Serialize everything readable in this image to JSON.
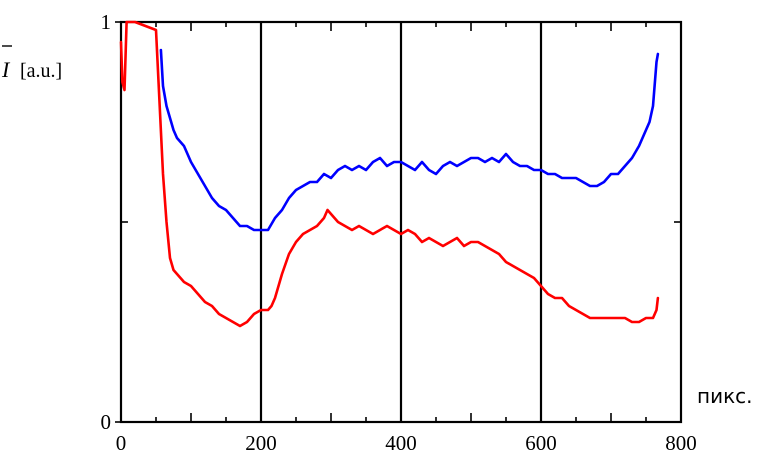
{
  "chart_data": {
    "type": "line",
    "ylabel_symbol": "I",
    "ylabel_unit": "[a.u.]",
    "xlabel": "пикс.",
    "xlim": [
      0,
      800
    ],
    "ylim": [
      0,
      1
    ],
    "x_ticks": [
      "0",
      "200",
      "400",
      "600",
      "800"
    ],
    "y_ticks": [
      "0",
      "1"
    ],
    "grid": "vertical at 200, 400, 600",
    "series": [
      {
        "color": "#0000ff",
        "points": [
          [
            57,
            0.93
          ],
          [
            60,
            0.84
          ],
          [
            65,
            0.79
          ],
          [
            70,
            0.76
          ],
          [
            75,
            0.73
          ],
          [
            80,
            0.71
          ],
          [
            85,
            0.7
          ],
          [
            90,
            0.69
          ],
          [
            95,
            0.67
          ],
          [
            100,
            0.65
          ],
          [
            110,
            0.62
          ],
          [
            120,
            0.59
          ],
          [
            130,
            0.56
          ],
          [
            140,
            0.54
          ],
          [
            150,
            0.53
          ],
          [
            160,
            0.51
          ],
          [
            170,
            0.49
          ],
          [
            180,
            0.49
          ],
          [
            190,
            0.48
          ],
          [
            200,
            0.48
          ],
          [
            210,
            0.48
          ],
          [
            220,
            0.51
          ],
          [
            230,
            0.53
          ],
          [
            240,
            0.56
          ],
          [
            250,
            0.58
          ],
          [
            260,
            0.59
          ],
          [
            270,
            0.6
          ],
          [
            280,
            0.6
          ],
          [
            290,
            0.62
          ],
          [
            300,
            0.61
          ],
          [
            310,
            0.63
          ],
          [
            320,
            0.64
          ],
          [
            330,
            0.63
          ],
          [
            340,
            0.64
          ],
          [
            350,
            0.63
          ],
          [
            360,
            0.65
          ],
          [
            370,
            0.66
          ],
          [
            380,
            0.64
          ],
          [
            390,
            0.65
          ],
          [
            400,
            0.65
          ],
          [
            410,
            0.64
          ],
          [
            420,
            0.63
          ],
          [
            430,
            0.65
          ],
          [
            440,
            0.63
          ],
          [
            450,
            0.62
          ],
          [
            460,
            0.64
          ],
          [
            470,
            0.65
          ],
          [
            480,
            0.64
          ],
          [
            490,
            0.65
          ],
          [
            500,
            0.66
          ],
          [
            510,
            0.66
          ],
          [
            520,
            0.65
          ],
          [
            530,
            0.66
          ],
          [
            540,
            0.65
          ],
          [
            550,
            0.67
          ],
          [
            560,
            0.65
          ],
          [
            570,
            0.64
          ],
          [
            580,
            0.64
          ],
          [
            590,
            0.63
          ],
          [
            600,
            0.63
          ],
          [
            610,
            0.62
          ],
          [
            620,
            0.62
          ],
          [
            630,
            0.61
          ],
          [
            640,
            0.61
          ],
          [
            650,
            0.61
          ],
          [
            660,
            0.6
          ],
          [
            670,
            0.59
          ],
          [
            680,
            0.59
          ],
          [
            690,
            0.6
          ],
          [
            700,
            0.62
          ],
          [
            710,
            0.62
          ],
          [
            720,
            0.64
          ],
          [
            730,
            0.66
          ],
          [
            740,
            0.69
          ],
          [
            750,
            0.73
          ],
          [
            755,
            0.75
          ],
          [
            760,
            0.79
          ],
          [
            765,
            0.9
          ],
          [
            767,
            0.92
          ]
        ]
      },
      {
        "color": "#ff0000",
        "points": [
          [
            0,
            0.95
          ],
          [
            2,
            0.85
          ],
          [
            5,
            0.83
          ],
          [
            8,
            1.0
          ],
          [
            20,
            1.0
          ],
          [
            35,
            0.99
          ],
          [
            50,
            0.98
          ],
          [
            55,
            0.8
          ],
          [
            60,
            0.62
          ],
          [
            65,
            0.5
          ],
          [
            70,
            0.41
          ],
          [
            75,
            0.38
          ],
          [
            80,
            0.37
          ],
          [
            90,
            0.35
          ],
          [
            100,
            0.34
          ],
          [
            110,
            0.32
          ],
          [
            120,
            0.3
          ],
          [
            130,
            0.29
          ],
          [
            140,
            0.27
          ],
          [
            150,
            0.26
          ],
          [
            160,
            0.25
          ],
          [
            170,
            0.24
          ],
          [
            180,
            0.25
          ],
          [
            190,
            0.27
          ],
          [
            200,
            0.28
          ],
          [
            210,
            0.28
          ],
          [
            215,
            0.29
          ],
          [
            220,
            0.31
          ],
          [
            230,
            0.37
          ],
          [
            240,
            0.42
          ],
          [
            250,
            0.45
          ],
          [
            260,
            0.47
          ],
          [
            270,
            0.48
          ],
          [
            280,
            0.49
          ],
          [
            290,
            0.51
          ],
          [
            295,
            0.53
          ],
          [
            300,
            0.52
          ],
          [
            310,
            0.5
          ],
          [
            320,
            0.49
          ],
          [
            330,
            0.48
          ],
          [
            340,
            0.49
          ],
          [
            350,
            0.48
          ],
          [
            360,
            0.47
          ],
          [
            370,
            0.48
          ],
          [
            380,
            0.49
          ],
          [
            390,
            0.48
          ],
          [
            400,
            0.47
          ],
          [
            410,
            0.48
          ],
          [
            420,
            0.47
          ],
          [
            430,
            0.45
          ],
          [
            440,
            0.46
          ],
          [
            450,
            0.45
          ],
          [
            460,
            0.44
          ],
          [
            470,
            0.45
          ],
          [
            480,
            0.46
          ],
          [
            490,
            0.44
          ],
          [
            500,
            0.45
          ],
          [
            510,
            0.45
          ],
          [
            520,
            0.44
          ],
          [
            530,
            0.43
          ],
          [
            540,
            0.42
          ],
          [
            550,
            0.4
          ],
          [
            560,
            0.39
          ],
          [
            570,
            0.38
          ],
          [
            580,
            0.37
          ],
          [
            590,
            0.36
          ],
          [
            600,
            0.34
          ],
          [
            610,
            0.32
          ],
          [
            620,
            0.31
          ],
          [
            630,
            0.31
          ],
          [
            640,
            0.29
          ],
          [
            650,
            0.28
          ],
          [
            660,
            0.27
          ],
          [
            670,
            0.26
          ],
          [
            680,
            0.26
          ],
          [
            690,
            0.26
          ],
          [
            700,
            0.26
          ],
          [
            710,
            0.26
          ],
          [
            720,
            0.26
          ],
          [
            730,
            0.25
          ],
          [
            740,
            0.25
          ],
          [
            750,
            0.26
          ],
          [
            760,
            0.26
          ],
          [
            765,
            0.28
          ],
          [
            767,
            0.31
          ]
        ]
      }
    ]
  }
}
